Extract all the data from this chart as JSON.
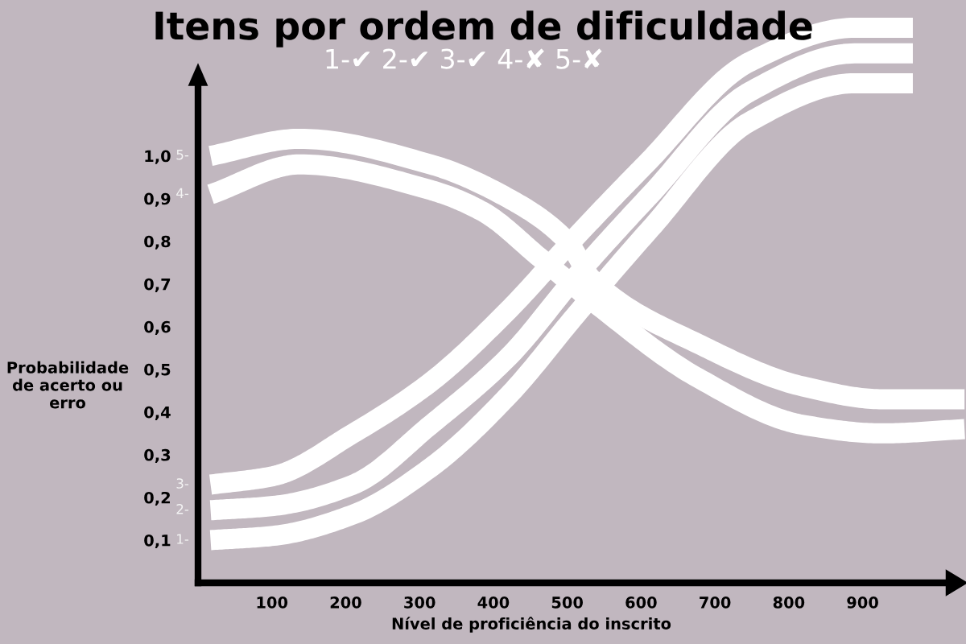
{
  "chart_data": {
    "type": "line",
    "title": "Itens por ordem de dificuldade",
    "subtitle": "1-✔ 2-✔ 3-✔ 4-✘ 5-✘",
    "xlabel": "Nível de proficiência do inscrito",
    "ylabel": "Probabilidade\nde acerto ou\nerro",
    "xlim": [
      0,
      1040
    ],
    "ylim": [
      0,
      1.35
    ],
    "xticks": [
      100,
      200,
      300,
      400,
      500,
      600,
      700,
      800,
      900
    ],
    "yticks": [
      {
        "value": 0.1,
        "label": "0,1"
      },
      {
        "value": 0.2,
        "label": "0,2"
      },
      {
        "value": 0.3,
        "label": "0,3"
      },
      {
        "value": 0.4,
        "label": "0,4"
      },
      {
        "value": 0.5,
        "label": "0,5"
      },
      {
        "value": 0.6,
        "label": "0,6"
      },
      {
        "value": 0.7,
        "label": "0,7"
      },
      {
        "value": 0.8,
        "label": "0,8"
      },
      {
        "value": 0.9,
        "label": "0,9"
      },
      {
        "value": 1.0,
        "label": "1,0"
      }
    ],
    "grid": false,
    "legend": false,
    "marker": "none",
    "line_style": "solid",
    "series": [
      {
        "name": "1-",
        "color": "#ffffff",
        "x": [
          17,
          102,
          210,
          315,
          421,
          513,
          613,
          747,
          889,
          968
        ],
        "values": [
          0.1,
          0.11,
          0.16,
          0.27,
          0.44,
          0.63,
          0.83,
          1.08,
          1.17,
          1.17
        ]
      },
      {
        "name": "2-",
        "color": "#ffffff",
        "x": [
          17,
          102,
          210,
          315,
          421,
          513,
          613,
          747,
          889,
          968
        ],
        "values": [
          0.17,
          0.18,
          0.23,
          0.37,
          0.53,
          0.72,
          0.91,
          1.15,
          1.24,
          1.24
        ]
      },
      {
        "name": "3-",
        "color": "#ffffff",
        "x": [
          17,
          102,
          210,
          315,
          421,
          506,
          606,
          747,
          889,
          968
        ],
        "values": [
          0.23,
          0.25,
          0.35,
          0.47,
          0.64,
          0.8,
          0.98,
          1.22,
          1.3,
          1.3
        ]
      },
      {
        "name": "4-",
        "color": "#ffffff",
        "x": [
          17,
          138,
          315,
          385,
          464,
          534,
          677,
          819,
          926,
          1038
        ],
        "values": [
          0.91,
          0.98,
          0.92,
          0.87,
          0.76,
          0.66,
          0.48,
          0.37,
          0.35,
          0.36
        ]
      },
      {
        "name": "5-",
        "color": "#ffffff",
        "x": [
          17,
          138,
          315,
          421,
          500,
          534,
          677,
          819,
          926,
          1038
        ],
        "values": [
          1.0,
          1.04,
          0.98,
          0.9,
          0.8,
          0.71,
          0.56,
          0.46,
          0.43,
          0.43
        ]
      }
    ]
  }
}
